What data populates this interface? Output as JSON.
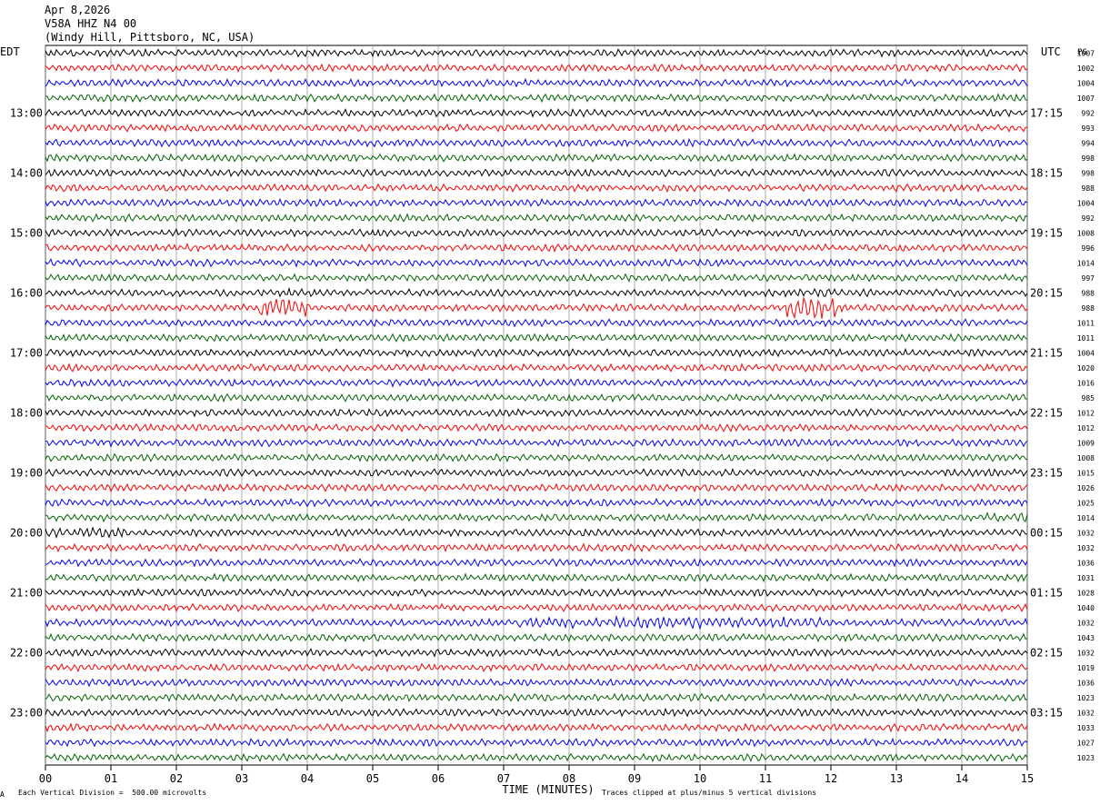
{
  "header": {
    "date": "Apr 8,2026",
    "station": "V58A HHZ N4 00",
    "location": "(Windy Hill, Pittsboro, NC, USA)"
  },
  "labels": {
    "left_tz": "EDT",
    "right_tz": "UTC",
    "pg": "PG",
    "xlabel": "TIME (MINUTES)",
    "scale_note": "Each Vertical Division =  500.00 microvolts",
    "clip_note": "Traces clipped at plus/minus 5 vertical divisions",
    "corner_mark": "A"
  },
  "chart_data": {
    "type": "line",
    "title": "",
    "xlabel": "TIME (MINUTES)",
    "ylabel": "",
    "xlim": [
      0,
      15
    ],
    "x_ticks": [
      "00",
      "01",
      "02",
      "03",
      "04",
      "05",
      "06",
      "07",
      "08",
      "09",
      "10",
      "11",
      "12",
      "13",
      "14",
      "15"
    ],
    "rows_per_hour": 4,
    "line_count": 48,
    "trace_colors": [
      "#000000",
      "#ff0000",
      "#0000ff",
      "#006400"
    ],
    "grid": true,
    "left_hour_labels": [
      {
        "row": 4,
        "text": "13:00"
      },
      {
        "row": 8,
        "text": "14:00"
      },
      {
        "row": 12,
        "text": "15:00"
      },
      {
        "row": 16,
        "text": "16:00"
      },
      {
        "row": 20,
        "text": "17:00"
      },
      {
        "row": 24,
        "text": "18:00"
      },
      {
        "row": 28,
        "text": "19:00"
      },
      {
        "row": 32,
        "text": "20:00"
      },
      {
        "row": 36,
        "text": "21:00"
      },
      {
        "row": 40,
        "text": "22:00"
      },
      {
        "row": 44,
        "text": "23:00"
      }
    ],
    "right_hour_labels": [
      {
        "row": 4,
        "text": "17:15"
      },
      {
        "row": 8,
        "text": "18:15"
      },
      {
        "row": 12,
        "text": "19:15"
      },
      {
        "row": 16,
        "text": "20:15"
      },
      {
        "row": 20,
        "text": "21:15"
      },
      {
        "row": 24,
        "text": "22:15"
      },
      {
        "row": 28,
        "text": "23:15"
      },
      {
        "row": 32,
        "text": "00:15"
      },
      {
        "row": 36,
        "text": "01:15"
      },
      {
        "row": 40,
        "text": "02:15"
      },
      {
        "row": 44,
        "text": "03:15"
      }
    ],
    "row_values": [
      "1007",
      "1002",
      "1004",
      "1007",
      "992",
      "993",
      "994",
      "998",
      "998",
      "988",
      "1004",
      "992",
      "1008",
      "996",
      "1014",
      "997",
      "988",
      "988",
      "1011",
      "1011",
      "1004",
      "1020",
      "1016",
      "985",
      "1012",
      "1012",
      "1009",
      "1008",
      "1015",
      "1026",
      "1025",
      "1014",
      "1032",
      "1032",
      "1036",
      "1031",
      "1028",
      "1040",
      "1032",
      "1043",
      "1032",
      "1019",
      "1036",
      "1023",
      "1032",
      "1033",
      "1027",
      "1023"
    ],
    "events": [
      {
        "row": 16,
        "start_min": 3.6,
        "end_min": 4.1,
        "amp": 1.2
      },
      {
        "row": 17,
        "start_min": 3.2,
        "end_min": 4.0,
        "amp": 2.6
      },
      {
        "row": 17,
        "start_min": 11.3,
        "end_min": 12.1,
        "amp": 3.2
      },
      {
        "row": 16,
        "start_min": 11.5,
        "end_min": 12.0,
        "amp": 1.2
      },
      {
        "row": 38,
        "start_min": 7.2,
        "end_min": 11.9,
        "amp": 1.6
      },
      {
        "row": 32,
        "start_min": 0.0,
        "end_min": 1.2,
        "amp": 1.4
      },
      {
        "row": 31,
        "start_min": 14.3,
        "end_min": 15.0,
        "amp": 1.3
      }
    ]
  }
}
